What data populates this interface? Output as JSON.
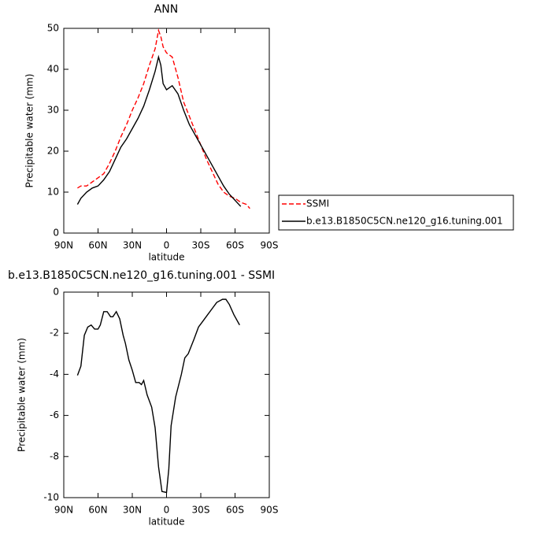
{
  "chart_data": [
    {
      "type": "line",
      "title": "ANN",
      "x_label": "latitude",
      "y_label": "Precipitable water (mm)",
      "x": [
        78,
        75,
        70,
        65,
        60,
        55,
        50,
        45,
        40,
        35,
        30,
        25,
        20,
        15,
        10,
        7,
        5,
        3,
        0,
        -5,
        -10,
        -15,
        -20,
        -25,
        -30,
        -35,
        -40,
        -45,
        -50,
        -55,
        -60,
        -65,
        -70,
        -73
      ],
      "series": [
        {
          "name": "SSMI",
          "color": "#ff0000",
          "line_style": "dashed",
          "values": [
            11,
            11.5,
            11.5,
            12.5,
            13.5,
            14.5,
            17,
            20,
            23.5,
            26.5,
            30,
            33,
            36.5,
            41,
            45,
            49.5,
            48,
            45.5,
            44,
            43,
            38,
            32,
            28.5,
            25,
            21.5,
            18,
            15,
            12,
            10,
            9,
            8.5,
            7.5,
            7,
            6
          ]
        },
        {
          "name": "b.e13.B1850C5CN.ne120_g16.tuning.001",
          "color": "#000000",
          "line_style": "solid",
          "values": [
            7,
            8.5,
            10,
            11,
            11.5,
            13,
            15,
            18,
            21,
            23,
            25.5,
            28,
            31,
            35,
            39.5,
            43,
            41,
            36.5,
            35,
            36,
            34,
            30,
            26.5,
            24,
            21.5,
            19,
            16.5,
            14,
            11.5,
            9.5,
            8,
            6.5,
            null,
            null
          ]
        }
      ],
      "xlim": [
        90,
        -90
      ],
      "xticks": [
        {
          "value": 90,
          "label": "90N"
        },
        {
          "value": 60,
          "label": "60N"
        },
        {
          "value": 30,
          "label": "30N"
        },
        0,
        {
          "value": -30,
          "label": "30S"
        },
        {
          "value": -60,
          "label": "60S"
        },
        {
          "value": -90,
          "label": "90S"
        }
      ],
      "ylim": [
        0,
        50
      ],
      "yticks": [
        0,
        10,
        20,
        30,
        40,
        50
      ],
      "legend": "right"
    },
    {
      "type": "line",
      "title": "b.e13.B1850C5CN.ne120_g16.tuning.001 - SSMI",
      "x_label": "latitude",
      "y_label": "Precipitable water (mm)",
      "x": [
        78,
        75,
        72,
        69,
        66,
        63,
        60,
        58,
        55,
        52,
        49,
        47,
        44,
        41,
        38,
        36,
        33,
        30,
        27,
        24,
        22,
        20,
        17,
        13,
        10,
        7,
        4,
        0,
        -2,
        -4,
        -8,
        -13,
        -16,
        -19,
        -24,
        -28,
        -32,
        -36,
        -40,
        -44,
        -49,
        -52,
        -55,
        -59,
        -64
      ],
      "series": [
        {
          "name": "b.e13.B1850C5CN.ne120_g16.tuning.001 - SSMI",
          "color": "#000000",
          "line_style": "solid",
          "values": [
            -4.05,
            -3.6,
            -2.1,
            -1.7,
            -1.6,
            -1.8,
            -1.8,
            -1.6,
            -0.95,
            -0.95,
            -1.2,
            -1.2,
            -0.95,
            -1.3,
            -2.1,
            -2.5,
            -3.3,
            -3.8,
            -4.4,
            -4.4,
            -4.5,
            -4.3,
            -5,
            -5.6,
            -6.6,
            -8.5,
            -9.7,
            -9.75,
            -8.6,
            -6.5,
            -5.1,
            -4,
            -3.2,
            -3,
            -2.3,
            -1.7,
            -1.4,
            -1.1,
            -0.8,
            -0.5,
            -0.35,
            -0.35,
            -0.6,
            -1.1,
            -1.6
          ]
        }
      ],
      "xlim": [
        90,
        -90
      ],
      "xticks": [
        {
          "value": 90,
          "label": "90N"
        },
        {
          "value": 60,
          "label": "60N"
        },
        {
          "value": 30,
          "label": "30N"
        },
        0,
        {
          "value": -30,
          "label": "30S"
        },
        {
          "value": -60,
          "label": "60S"
        },
        {
          "value": -90,
          "label": "90S"
        }
      ],
      "ylim": [
        -10,
        0
      ],
      "yticks": [
        -10,
        -8,
        -6,
        -4,
        -2,
        0
      ]
    }
  ]
}
